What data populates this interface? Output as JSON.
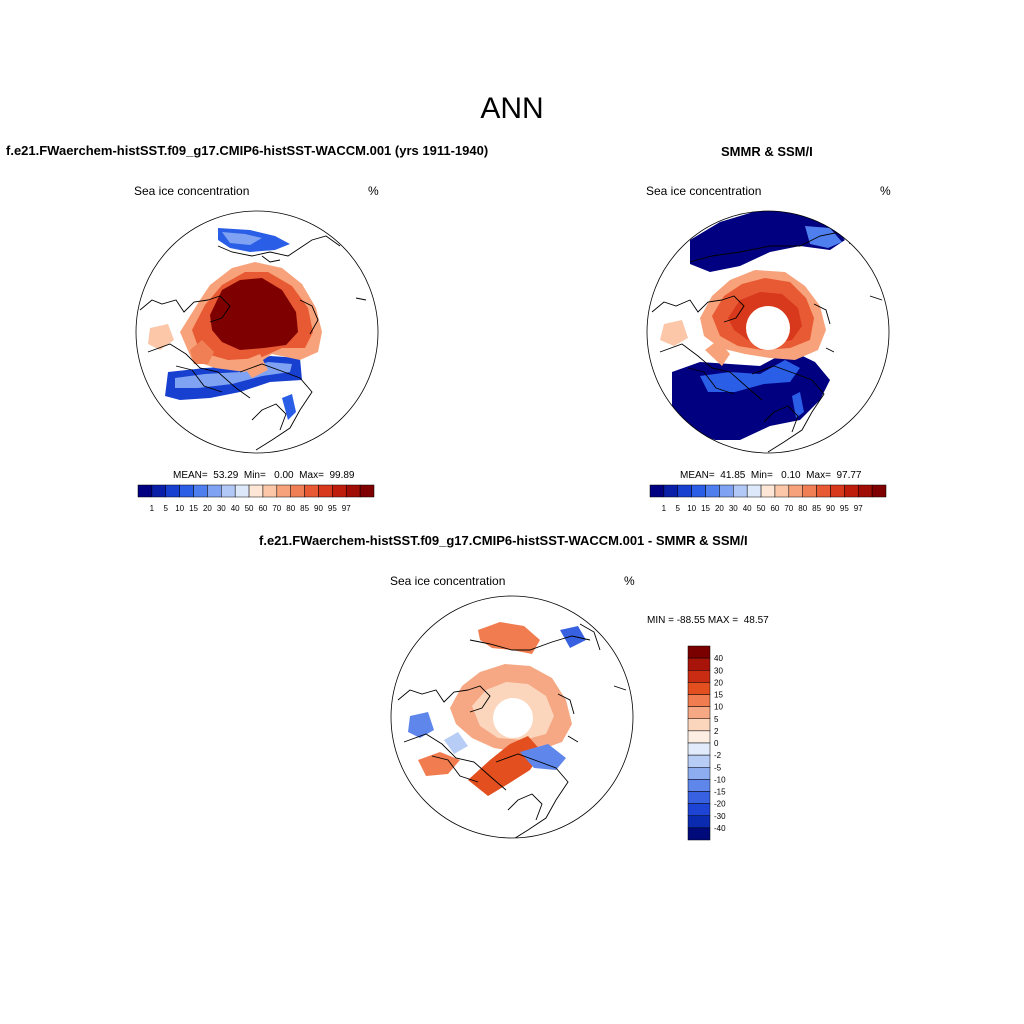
{
  "figure": {
    "title": "ANN",
    "colors": {
      "abs_palette": [
        "#000080",
        "#0a1fa8",
        "#1740d0",
        "#2a5ee6",
        "#4f7fee",
        "#7fa3f2",
        "#b2c9f7",
        "#dde8fb",
        "#fde6d6",
        "#fbc7a8",
        "#f7a27a",
        "#f07f55",
        "#e85a33",
        "#d8381b",
        "#bf1d0c",
        "#a00d04",
        "#7f0000"
      ],
      "diff_palette": [
        "#7a0000",
        "#a8140a",
        "#c92c12",
        "#e34f1e",
        "#f07c4f",
        "#f6a783",
        "#fbd6bd",
        "#fdeee4",
        "#e1ebfb",
        "#b8cdf5",
        "#8eadf0",
        "#5f86ea",
        "#3861e2",
        "#1d44d4",
        "#0a2bb0",
        "#000a7a"
      ],
      "land_line": "#000000",
      "nodata": "#ffffff"
    }
  },
  "panels": [
    {
      "id": "model",
      "title": "f.e21.FWaerchem-histSST.f09_g17.CMIP6-histSST-WACCM.001 (yrs 1911-1940)",
      "left_label": "Sea ice concentration",
      "right_label": "%",
      "stats": "MEAN=  53.29  Min=   0.00  Max=  99.89",
      "colorbar_labels": [
        "1",
        "5",
        "10",
        "15",
        "20",
        "30",
        "40",
        "50",
        "60",
        "70",
        "80",
        "85",
        "90",
        "95",
        "97"
      ]
    },
    {
      "id": "obs",
      "title": "SMMR & SSM/I",
      "left_label": "Sea ice concentration",
      "right_label": "%",
      "stats": "MEAN=  41.85  Min=   0.10  Max=  97.77",
      "colorbar_labels": [
        "1",
        "5",
        "10",
        "15",
        "20",
        "30",
        "40",
        "50",
        "60",
        "70",
        "80",
        "85",
        "90",
        "95",
        "97"
      ]
    },
    {
      "id": "diff",
      "title": "f.e21.FWaerchem-histSST.f09_g17.CMIP6-histSST-WACCM.001 - SMMR & SSM/I",
      "left_label": "Sea ice concentration",
      "right_label": "%",
      "stats": "MIN = -88.55 MAX =  48.57",
      "colorbar_labels": [
        "40",
        "30",
        "20",
        "15",
        "10",
        "5",
        "2",
        "0",
        "-2",
        "-5",
        "-10",
        "-15",
        "-20",
        "-30",
        "-40"
      ]
    }
  ],
  "chart_data": [
    {
      "type": "heatmap",
      "projection": "north-polar-stereographic",
      "title": "f.e21.FWaerchem-histSST.f09_g17.CMIP6-histSST-WACCM.001 (yrs 1911-1940)",
      "variable": "Sea ice concentration",
      "units": "%",
      "mean": 53.29,
      "min": 0.0,
      "max": 99.89,
      "levels": [
        1,
        5,
        10,
        15,
        20,
        30,
        40,
        50,
        60,
        70,
        80,
        85,
        90,
        95,
        97
      ],
      "description_regions": {
        "central_arctic": 99,
        "marginal_seas": 75,
        "ice_edge": 15
      }
    },
    {
      "type": "heatmap",
      "projection": "north-polar-stereographic",
      "title": "SMMR & SSM/I",
      "variable": "Sea ice concentration",
      "units": "%",
      "mean": 41.85,
      "min": 0.1,
      "max": 97.77,
      "levels": [
        1,
        5,
        10,
        15,
        20,
        30,
        40,
        50,
        60,
        70,
        80,
        85,
        90,
        95,
        97
      ],
      "pole_hole": true
    },
    {
      "type": "heatmap",
      "projection": "north-polar-stereographic",
      "title": "f.e21.FWaerchem-histSST.f09_g17.CMIP6-histSST-WACCM.001 - SMMR & SSM/I",
      "variable": "Sea ice concentration",
      "units": "%",
      "min": -88.55,
      "max": 48.57,
      "levels": [
        -40,
        -30,
        -20,
        -15,
        -10,
        -5,
        -2,
        0,
        2,
        5,
        10,
        15,
        20,
        30,
        40
      ],
      "pole_hole": true
    }
  ]
}
